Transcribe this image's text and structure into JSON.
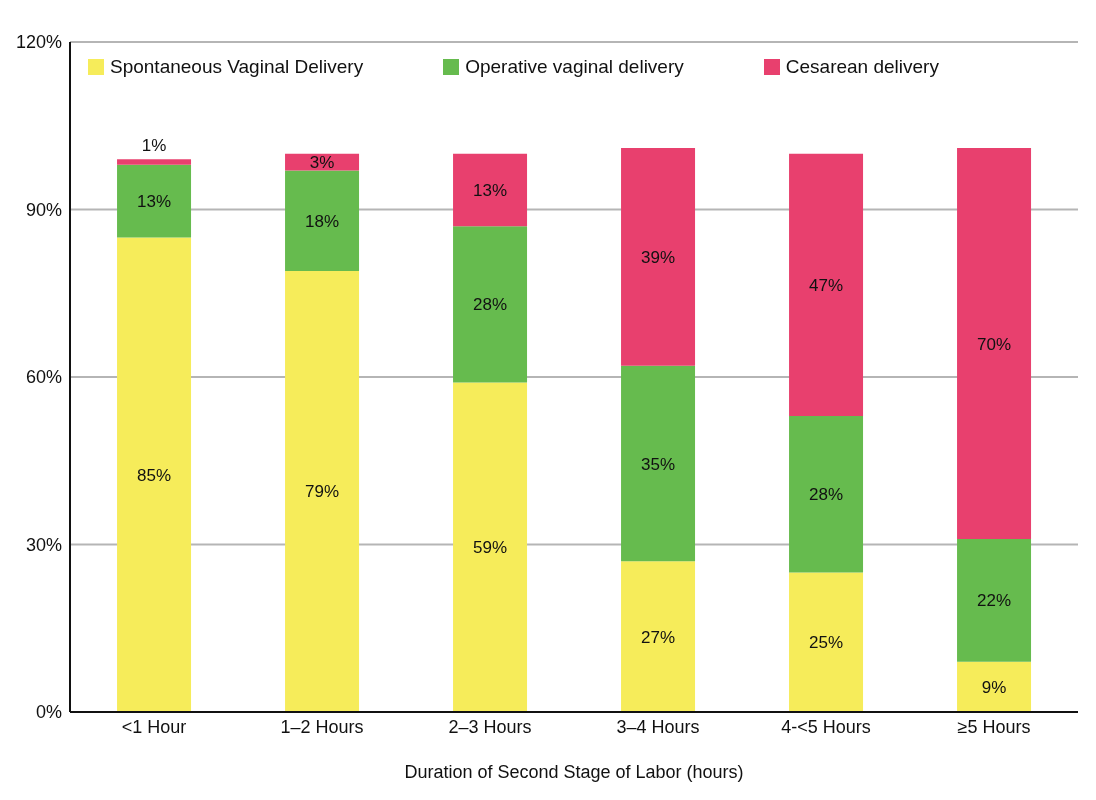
{
  "chart_data": {
    "type": "bar",
    "stacked": true,
    "xlabel": "Duration of Second Stage of Labor (hours)",
    "categories": [
      "<1 Hour",
      "1–2 Hours",
      "2–3 Hours",
      "3–4 Hours",
      "4-<5 Hours",
      "≥5 Hours"
    ],
    "series": [
      {
        "name": "Spontaneous Vaginal Delivery",
        "color": "#f6ec5a",
        "values": [
          85,
          79,
          59,
          27,
          25,
          9
        ],
        "value_labels": [
          "85%",
          "79%",
          "59%",
          "27%",
          "25%",
          "9%"
        ]
      },
      {
        "name": "Operative vaginal delivery",
        "color": "#66bb4e",
        "values": [
          13,
          18,
          28,
          35,
          28,
          22
        ],
        "value_labels": [
          "13%",
          "18%",
          "28%",
          "35%",
          "28%",
          "22%"
        ]
      },
      {
        "name": "Cesarean delivery",
        "color": "#e8406e",
        "values": [
          1,
          3,
          13,
          39,
          47,
          70
        ],
        "value_labels": [
          "1%",
          "3%",
          "13%",
          "39%",
          "47%",
          "70%"
        ]
      }
    ],
    "ylim": [
      0,
      120
    ],
    "yticks": [
      {
        "value": 0,
        "label": "0%"
      },
      {
        "value": 30,
        "label": "30%"
      },
      {
        "value": 60,
        "label": "60%"
      },
      {
        "value": 90,
        "label": "90%"
      },
      {
        "value": 120,
        "label": "120%"
      }
    ],
    "grid": "y",
    "legend": "top"
  }
}
